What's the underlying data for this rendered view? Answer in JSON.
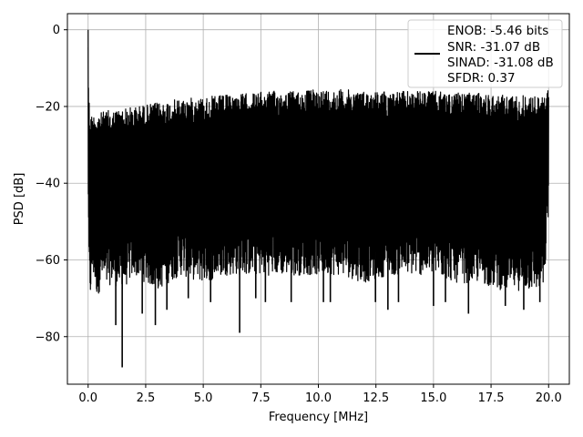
{
  "chart_data": {
    "type": "line",
    "title": "",
    "xlabel": "Frequency [MHz]",
    "ylabel": "PSD [dB]",
    "xlim": [
      -0.9,
      20.9
    ],
    "ylim": [
      -92.4,
      4.2
    ],
    "xticks": [
      0.0,
      2.5,
      5.0,
      7.5,
      10.0,
      12.5,
      15.0,
      17.5,
      20.0
    ],
    "xtick_labels": [
      "0.0",
      "2.5",
      "5.0",
      "7.5",
      "10.0",
      "12.5",
      "15.0",
      "17.5",
      "20.0"
    ],
    "yticks": [
      0,
      -20,
      -40,
      -60,
      -80
    ],
    "ytick_labels": [
      "0",
      "−20",
      "−40",
      "−60",
      "−80"
    ],
    "grid": true,
    "legend_position": "top-right",
    "legend_lines": [
      "ENOB: -5.46 bits",
      "SNR: -31.07 dB",
      "SINAD: -31.08 dB",
      "SFDR: 0.37"
    ],
    "series_color": "#000000",
    "series": [
      {
        "name": "ENOB: -5.46 bits",
        "description": "dense noisy PSD spectrum; upper envelope ~-22 dB at 0.1 MHz rising to ~-16 dB near 10 MHz; lower envelope ~-55 to -70 dB with deep nulls",
        "x": [
          0.0,
          0.02,
          0.06,
          0.1,
          0.2,
          0.4,
          0.6,
          0.8,
          1.0,
          1.5,
          2.0,
          2.5,
          3.0,
          3.5,
          4.0,
          5.0,
          6.0,
          7.0,
          8.0,
          9.0,
          10.0,
          11.0,
          12.0,
          13.0,
          14.0,
          15.0,
          16.0,
          17.0,
          18.0,
          19.0,
          19.8,
          20.0
        ],
        "upper": [
          0.0,
          -14.0,
          -20.0,
          -22.0,
          -22.0,
          -21.5,
          -21.5,
          -21.0,
          -21.0,
          -20.5,
          -20.0,
          -19.5,
          -19.0,
          -18.5,
          -18.0,
          -17.5,
          -17.0,
          -16.5,
          -16.0,
          -16.0,
          -15.5,
          -15.5,
          -16.0,
          -16.0,
          -16.0,
          -16.0,
          -16.5,
          -16.5,
          -17.0,
          -17.0,
          -17.5,
          -15.0
        ],
        "lower": [
          -38.0,
          -60.0,
          -70.0,
          -70.0,
          -64.0,
          -70.0,
          -66.0,
          -68.0,
          -66.0,
          -68.0,
          -64.0,
          -66.0,
          -68.0,
          -66.0,
          -64.0,
          -66.0,
          -64.0,
          -64.0,
          -64.0,
          -64.0,
          -64.0,
          -64.0,
          -66.0,
          -64.0,
          -64.0,
          -64.0,
          -66.0,
          -66.0,
          -68.0,
          -68.0,
          -68.0,
          -48.0
        ],
        "spikes_x": [
          1.2,
          1.48,
          2.35,
          2.92,
          3.42,
          4.35,
          5.32,
          6.58,
          7.28,
          7.7,
          8.82,
          10.22,
          10.52,
          12.48,
          13.02,
          13.48,
          15.0,
          15.52,
          16.52,
          18.12,
          18.92,
          19.62
        ],
        "spikes_y": [
          -77.0,
          -88.0,
          -74.0,
          -77.0,
          -73.0,
          -70.0,
          -71.0,
          -79.0,
          -70.0,
          -71.0,
          -71.0,
          -71.0,
          -71.0,
          -71.0,
          -73.0,
          -71.0,
          -72.0,
          -71.0,
          -74.0,
          -72.0,
          -73.0,
          -71.0
        ]
      }
    ]
  }
}
